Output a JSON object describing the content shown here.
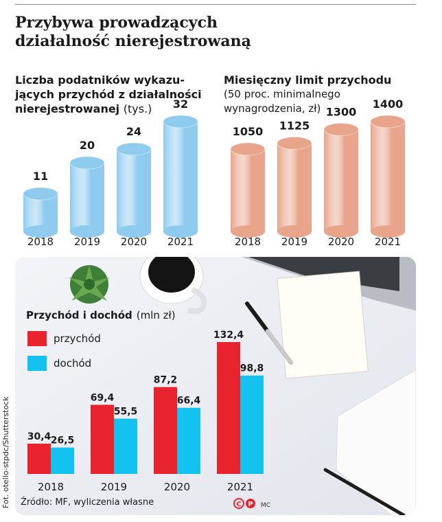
{
  "title": "Przybywa prowadzących\ndziałalność nierejestrowaną",
  "panel_left": {
    "title_line1": "Liczba podatników wykazu-",
    "title_line2": "jących przychód z działalności",
    "title_line3_bold": "nierejestrowanej",
    "title_line3_unit": "(tys.)"
  },
  "panel_right": {
    "title": "Miesięczny limit przychodu",
    "subtitle": "(50 proc. minimalnego\nwynagrodzenia, zł)"
  },
  "chart_data": [
    {
      "type": "bar",
      "title": "Liczba podatników wykazujących przychód z działalności nierejestrowanej (tys.)",
      "categories": [
        "2018",
        "2019",
        "2020",
        "2021"
      ],
      "values": [
        11,
        20,
        24,
        32
      ],
      "labels": [
        "11",
        "20",
        "24",
        "32"
      ],
      "ylim": [
        0,
        32
      ],
      "color": "#8ecbef"
    },
    {
      "type": "bar",
      "title": "Miesięczny limit przychodu (50 proc. minimalnego wynagrodzenia, zł)",
      "categories": [
        "2018",
        "2019",
        "2020",
        "2021"
      ],
      "values": [
        1050,
        1125,
        1300,
        1400
      ],
      "labels": [
        "1050",
        "1125",
        "1300",
        "1400"
      ],
      "ylim": [
        0,
        1400
      ],
      "color": "#e8a58c"
    },
    {
      "type": "bar",
      "title": "Przychód i dochód",
      "unit": "(mln zł)",
      "categories": [
        "2018",
        "2019",
        "2020",
        "2021"
      ],
      "series": [
        {
          "name": "przychód",
          "values": [
            30.4,
            69.4,
            87.2,
            132.4
          ],
          "labels": [
            "30,4",
            "69,4",
            "87,2",
            "132,4"
          ],
          "color": "#e8232d"
        },
        {
          "name": "dochód",
          "values": [
            26.5,
            55.5,
            66.4,
            98.8
          ],
          "labels": [
            "26,5",
            "55,5",
            "66,4",
            "98,8"
          ],
          "color": "#14c2ef"
        }
      ],
      "ylim": [
        0,
        132.4
      ]
    }
  ],
  "source": "Źródło: MF, wyliczenia własne",
  "credit": "Fot. otello-stpdc/Shutterstock",
  "signature": "MC"
}
